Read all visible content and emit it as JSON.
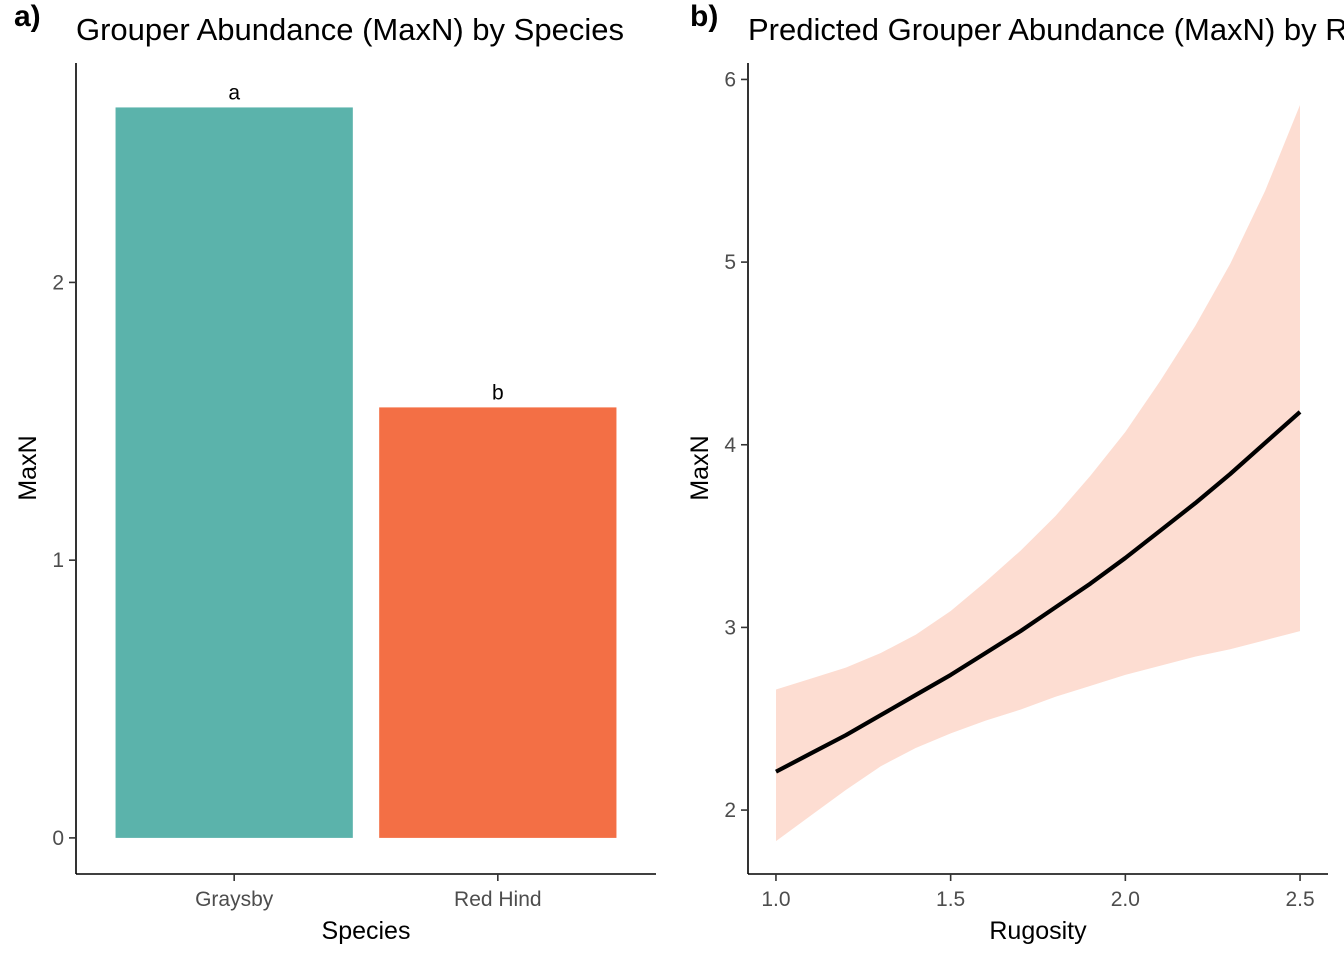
{
  "panels": {
    "a": {
      "tag": "a)",
      "title": "Grouper Abundance (MaxN) by Species"
    },
    "b": {
      "tag": "b)",
      "title": "Predicted Grouper Abundance (MaxN) by Rugosity"
    }
  },
  "chart_data": [
    {
      "type": "bar",
      "title": "Grouper Abundance (MaxN) by Species",
      "xlabel": "Species",
      "ylabel": "MaxN",
      "categories": [
        "Graysby",
        "Red Hind"
      ],
      "values": [
        2.63,
        1.55
      ],
      "bar_labels": [
        "a",
        "b"
      ],
      "colors": [
        "#5BB3AB",
        "#F36F45"
      ],
      "ylim": [
        -0.13,
        2.79
      ],
      "yticks": [
        0,
        1,
        2
      ],
      "grid": false
    },
    {
      "type": "line",
      "title": "Predicted Grouper Abundance (MaxN) by Rugosity",
      "xlabel": "Rugosity",
      "ylabel": "MaxN",
      "xlim": [
        0.92,
        2.58
      ],
      "ylim": [
        1.65,
        6.09
      ],
      "xticks": [
        1.0,
        1.5,
        2.0,
        2.5
      ],
      "yticks": [
        2,
        3,
        4,
        5,
        6
      ],
      "grid": false,
      "line_color": "#000000",
      "ribbon_color": "#FDDDD2",
      "series": [
        {
          "x": [
            1.0,
            1.1,
            1.2,
            1.3,
            1.4,
            1.5,
            1.6,
            1.7,
            1.8,
            1.9,
            2.0,
            2.1,
            2.2,
            2.3,
            2.4,
            2.5
          ],
          "y": [
            2.21,
            2.31,
            2.41,
            2.52,
            2.63,
            2.74,
            2.86,
            2.98,
            3.11,
            3.24,
            3.38,
            3.53,
            3.68,
            3.84,
            4.01,
            4.18
          ],
          "lower": [
            1.83,
            1.97,
            2.11,
            2.24,
            2.34,
            2.42,
            2.49,
            2.55,
            2.62,
            2.68,
            2.74,
            2.79,
            2.84,
            2.88,
            2.93,
            2.98
          ],
          "upper": [
            2.66,
            2.72,
            2.78,
            2.86,
            2.96,
            3.09,
            3.25,
            3.42,
            3.61,
            3.83,
            4.07,
            4.35,
            4.65,
            4.99,
            5.39,
            5.86
          ]
        }
      ]
    }
  ]
}
